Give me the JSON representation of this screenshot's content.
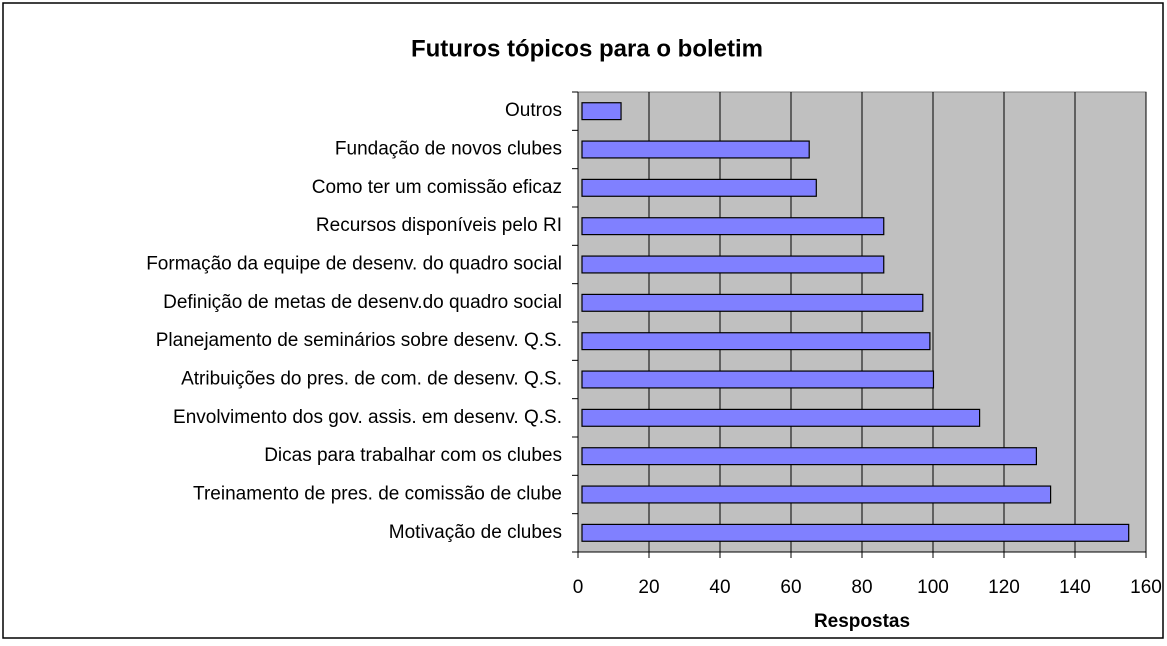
{
  "chart_data": {
    "type": "barh",
    "title": "Futuros tópicos para o boletim",
    "xlabel": "Respostas",
    "categories": [
      "Outros",
      "Fundação de novos clubes",
      "Como ter um comissão eficaz",
      "Recursos disponíveis pelo RI",
      "Formação da equipe de desenv. do quadro social",
      "Definição de metas de desenv.do quadro social",
      "Planejamento de seminários sobre desenv. Q.S.",
      "Atribuições do pres. de com. de desenv. Q.S.",
      "Envolvimento dos gov. assis. em desenv. Q.S.",
      "Dicas para trabalhar com os clubes",
      "Treinamento de pres. de comissão de clube",
      "Motivação de clubes"
    ],
    "values": [
      11,
      64,
      66,
      85,
      85,
      96,
      98,
      99,
      112,
      128,
      132,
      154
    ],
    "color": "#8080ff",
    "xlim": [
      0,
      160
    ],
    "xticks": [
      0,
      20,
      40,
      60,
      80,
      100,
      120,
      140,
      160
    ],
    "grid": true
  }
}
